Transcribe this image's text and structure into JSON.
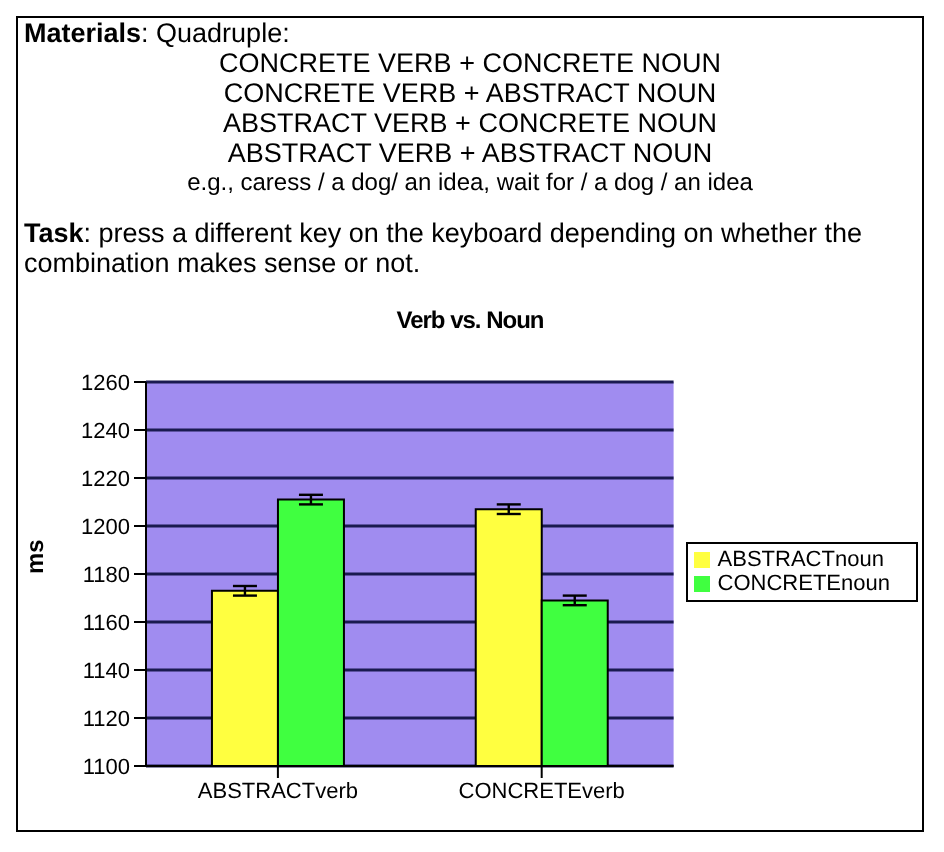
{
  "chart_data": {
    "type": "bar",
    "title": "Verb vs. Noun",
    "ylabel": "ms",
    "annotations": [
      "Materials: Quadruple:",
      "CONCRETE VERB + CONCRETE NOUN",
      "CONCRETE VERB + ABSTRACT NOUN",
      "ABSTRACT VERB + CONCRETE NOUN",
      "ABSTRACT VERB + ABSTRACT NOUN",
      "e.g., caress / a dog/ an idea, wait for / a dog / an idea",
      "Task: press a different key on the keyboard depending on whether the combination makes sense or not."
    ],
    "categories": [
      "ABSTRACTverb",
      "CONCRETEverb"
    ],
    "series": [
      {
        "name": "ABSTRACTnoun",
        "color": "#ffff40",
        "values": [
          1173,
          1207
        ],
        "errors": [
          2,
          2
        ]
      },
      {
        "name": "CONCRETEnoun",
        "color": "#40ff40",
        "values": [
          1211,
          1169
        ],
        "errors": [
          2,
          2
        ]
      }
    ],
    "ylim": [
      1100,
      1260
    ],
    "yticks": [
      1100,
      1120,
      1140,
      1160,
      1180,
      1200,
      1220,
      1240,
      1260
    ],
    "grid": "y",
    "legend": "right"
  }
}
